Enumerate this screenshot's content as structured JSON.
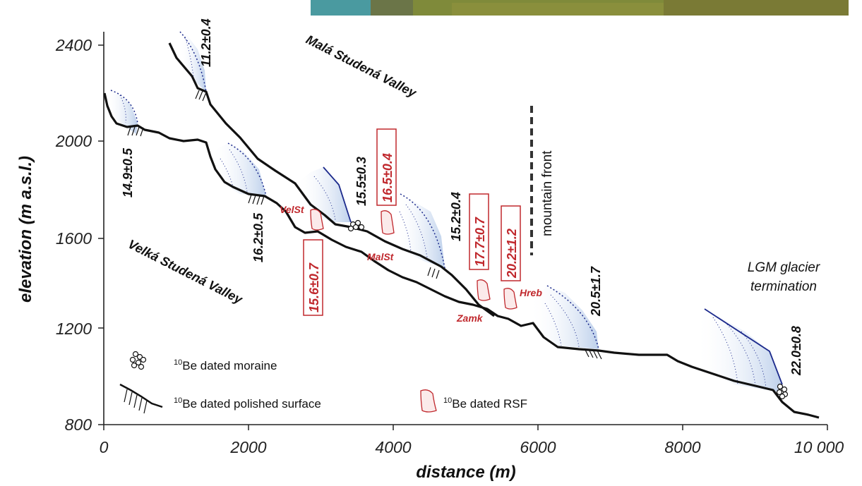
{
  "figure": {
    "axes": {
      "x_title": "distance (m)",
      "y_title": "elevation (m a.s.l.)",
      "x_ticks": [
        "0",
        "2000",
        "4000",
        "6000",
        "8000",
        "10 000"
      ],
      "y_ticks": [
        "800",
        "1200",
        "1600",
        "2000",
        "2400"
      ],
      "xlim": [
        0,
        10000
      ],
      "ylim": [
        800,
        2400
      ]
    },
    "valleys": {
      "mala": "Malá Studená Valley",
      "velka": "Velká Studená Valley"
    },
    "ages_black": {
      "a1": "11.2±0.4",
      "a2": "14.9±0.5",
      "a3": "16.2±0.5",
      "a4": "15.5±0.3",
      "a5": "15.2±0.4",
      "a6": "20.5±1.7",
      "a7": "22.0±0.8"
    },
    "ages_rsf": {
      "r1": "16.5±0.4",
      "r2": "15.6±0.7",
      "r3": "17.7±0.7",
      "r4": "20.2±1.2"
    },
    "sites": {
      "velst": "VelSt",
      "malst": "MalSt",
      "zamk": "Zamk",
      "hreb": "Hreb"
    },
    "annotations": {
      "mountain_front": "mountain front",
      "lgm_line1": "LGM glacier",
      "lgm_line2": "termination"
    },
    "legend": {
      "sup": "10",
      "moraine": "Be dated moraine",
      "polished": "Be dated polished surface",
      "rsf": "Be dated RSF"
    },
    "colors": {
      "rsf_red": "#c0282d",
      "ice_blue": "#1c2a8c",
      "ice_fill": "#c9d8ef",
      "profile": "#111111"
    }
  }
}
